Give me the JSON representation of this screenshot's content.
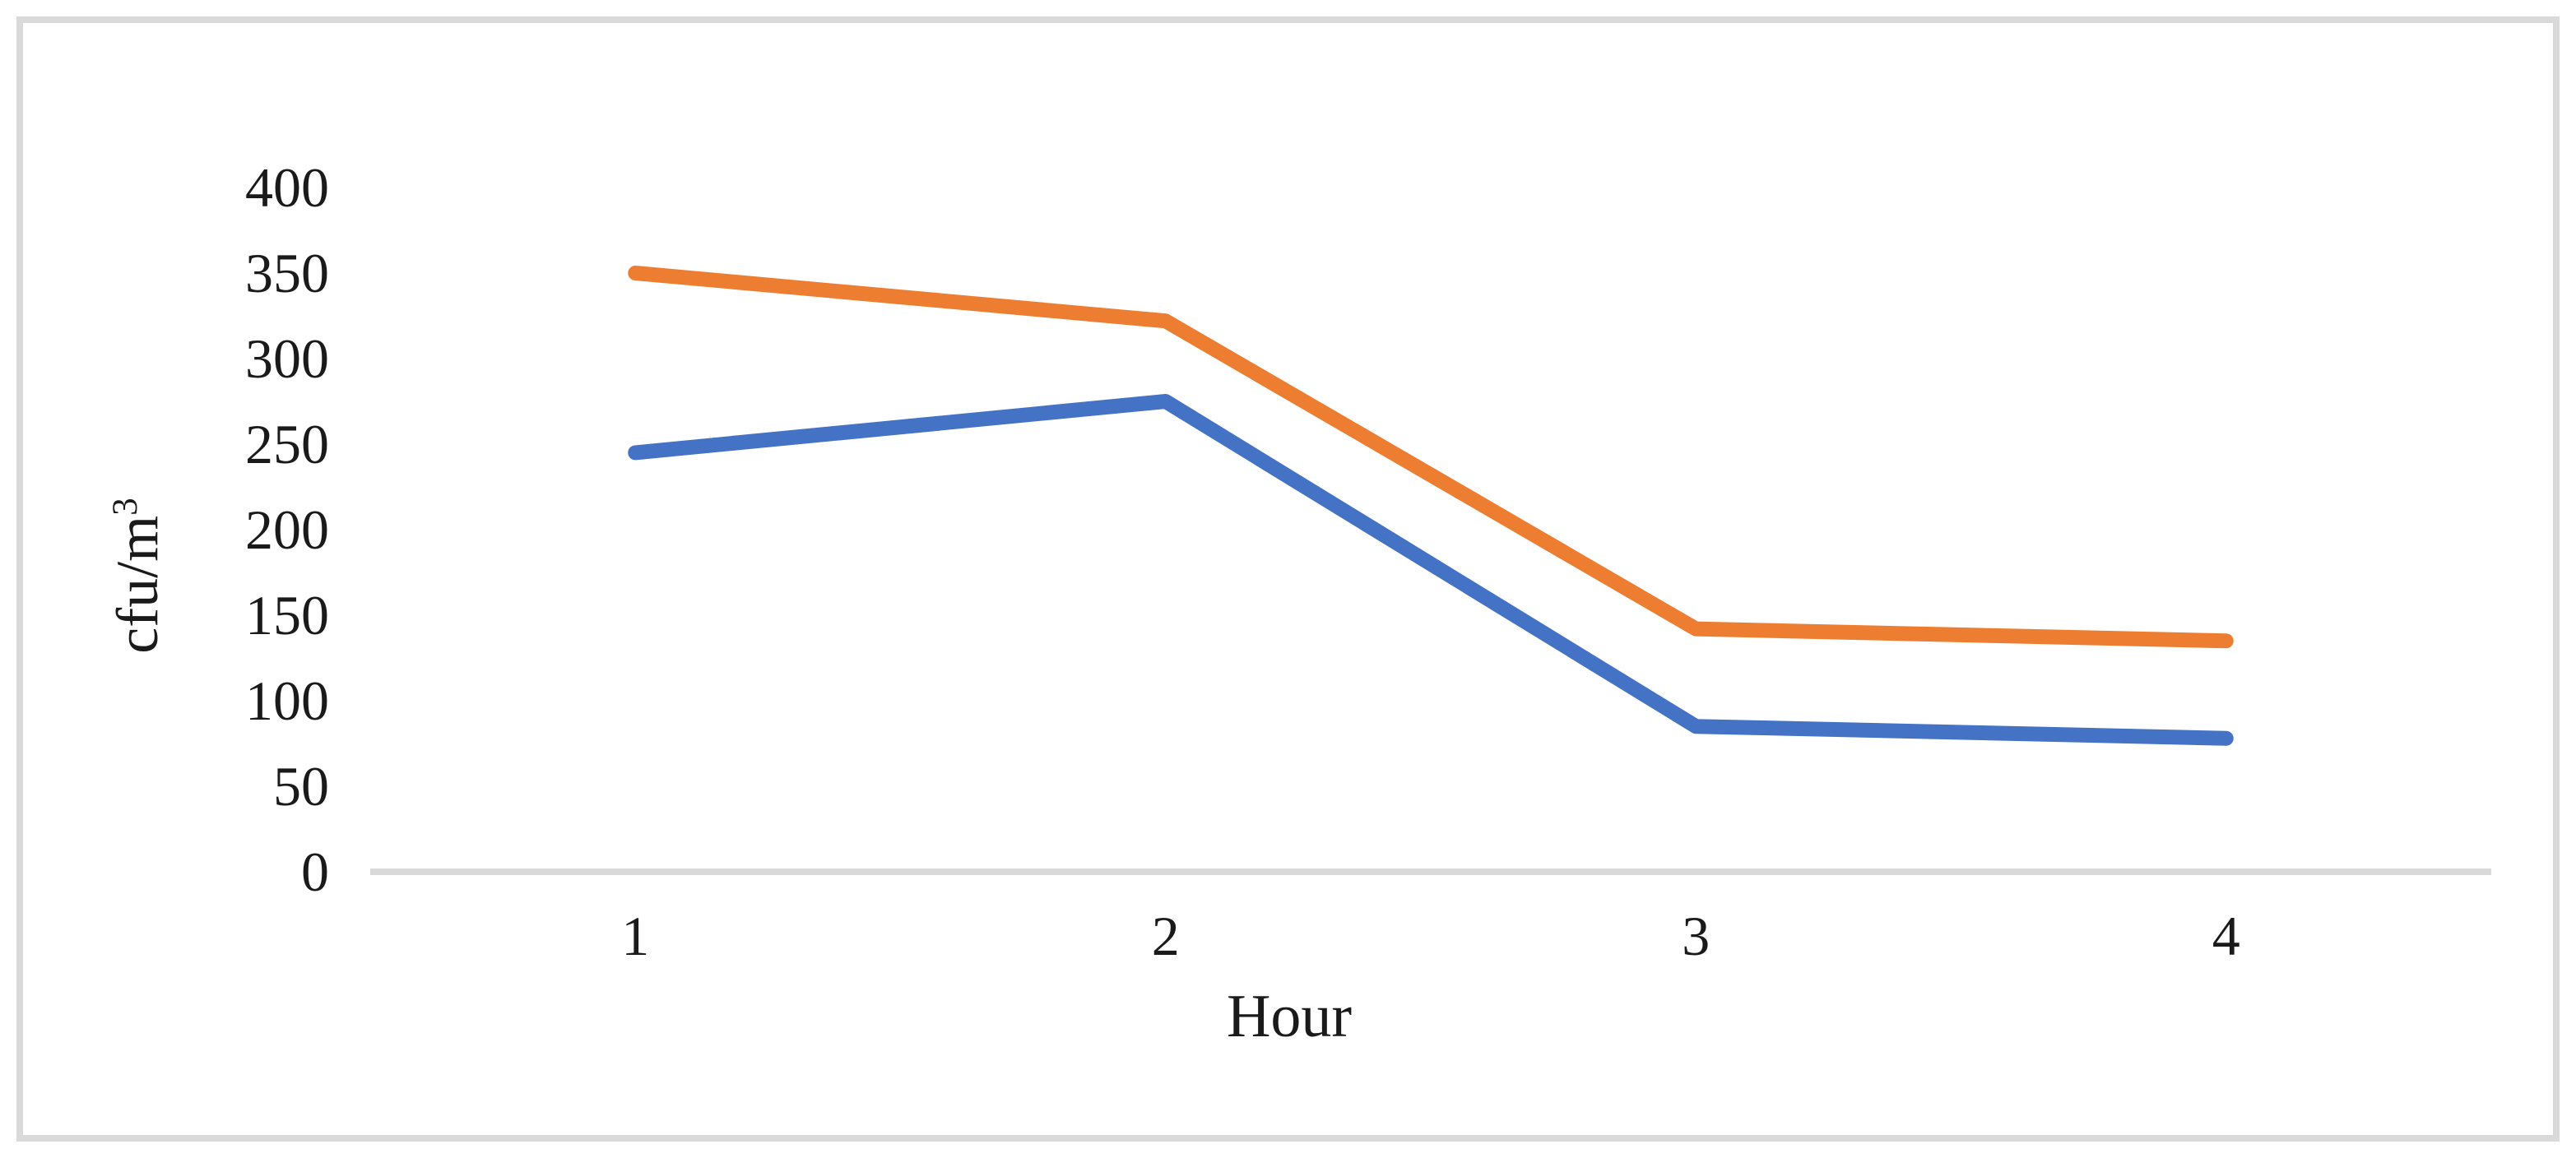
{
  "figure": {
    "background_color": "#ffffff",
    "border_color": "#d9d9d9"
  },
  "chart_data": {
    "type": "line",
    "categories": [
      "1",
      "2",
      "3",
      "4"
    ],
    "series": [
      {
        "name": "orange-series",
        "color": "#ed7d31",
        "values": [
          350,
          322,
          142,
          135
        ]
      },
      {
        "name": "blue-series",
        "color": "#4472c4",
        "values": [
          245,
          275,
          85,
          78
        ]
      }
    ],
    "title": "",
    "xlabel": "Hour",
    "ylabel": "cfu/m³",
    "ylabel_base": "cfu/m",
    "ylabel_sup": "3",
    "ylim": [
      0,
      400
    ],
    "ytick_step": 50,
    "grid": false,
    "legend_position": "none",
    "axis_line_color": "#d9d9d9",
    "text_color": "#1a1a1a",
    "line_width": 18
  }
}
